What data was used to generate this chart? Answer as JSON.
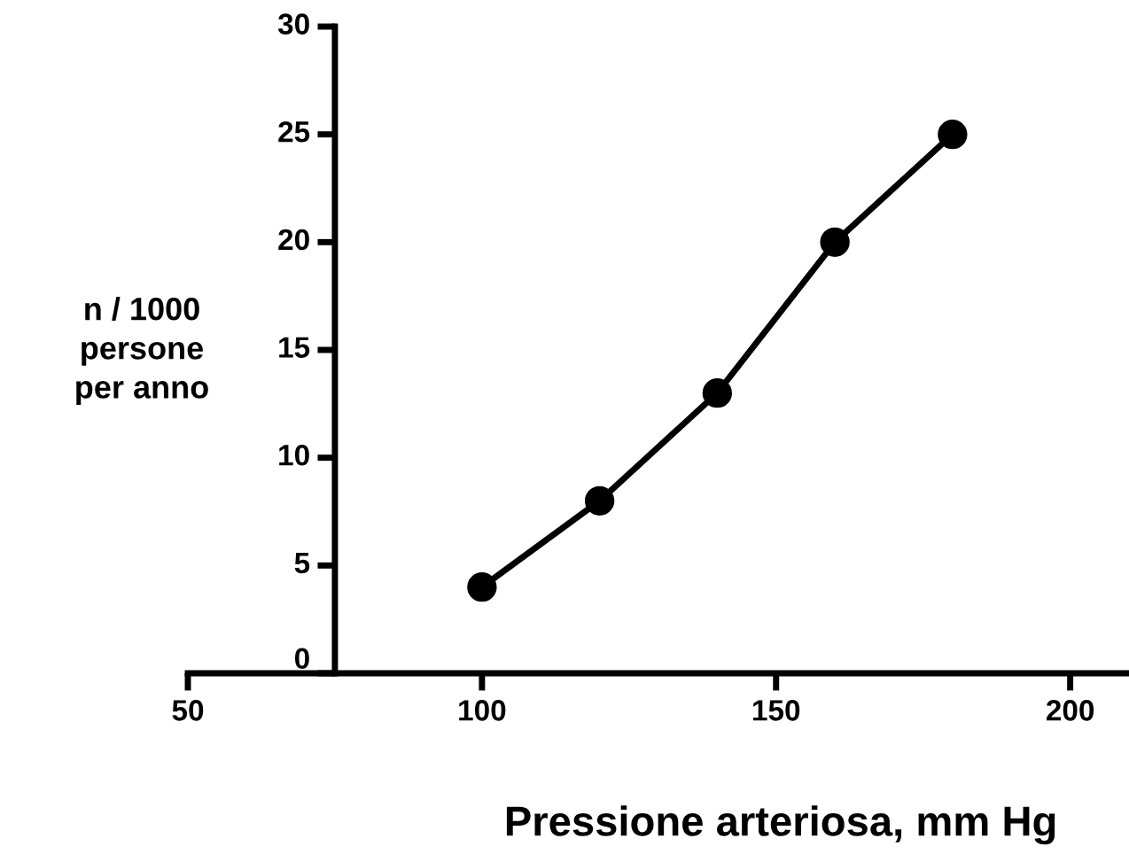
{
  "chart_data": {
    "type": "line",
    "xlabel": "Pressione arteriosa, mm Hg",
    "ylabel": "n / 1000\npersone\nper anno",
    "x": [
      100,
      120,
      140,
      160,
      180
    ],
    "series": [
      {
        "color": "#000000",
        "values": [
          4,
          8,
          13,
          20,
          25
        ]
      }
    ],
    "xlim": [
      50,
      210
    ],
    "xticks": [
      50,
      100,
      150,
      200
    ],
    "ylim": [
      0,
      30
    ],
    "yticks": [
      0,
      5,
      10,
      15,
      20,
      25,
      30
    ],
    "marker": "circle",
    "line_style": "solid",
    "grid": false,
    "legend": false
  }
}
